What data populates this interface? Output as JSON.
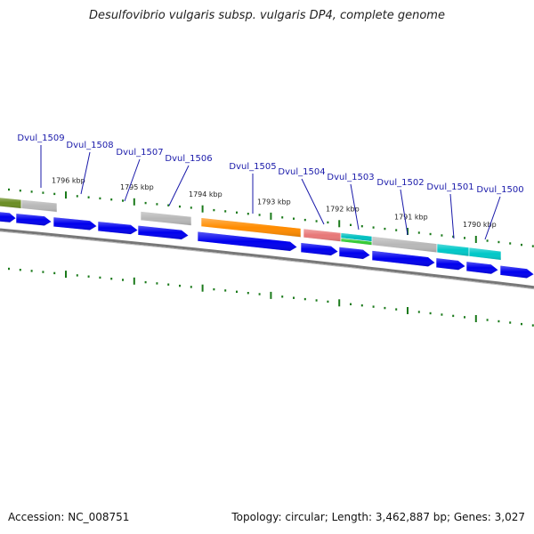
{
  "title": "Desulfovibrio vulgaris subsp. vulgaris DP4, complete genome",
  "footer": {
    "accession": "Accession: NC_008751",
    "summary": "Topology: circular; Length: 3,462,887 bp; Genes: 3,027"
  },
  "colors": {
    "forward_gene": "#0000ee",
    "gene_label": "#1a1aaa",
    "tick": "#1a7a1a",
    "backbone": "#777777"
  },
  "kbp_ticks": [
    "1796 kbp",
    "1795 kbp",
    "1794 kbp",
    "1793 kbp",
    "1792 kbp",
    "1791 kbp",
    "1790 kbp"
  ],
  "gene_labels": [
    "Dvul_1509",
    "Dvul_1508",
    "Dvul_1507",
    "Dvul_1506",
    "Dvul_1505",
    "Dvul_1504",
    "Dvul_1503",
    "Dvul_1502",
    "Dvul_1501",
    "Dvul_1500"
  ],
  "reverse_track_genes": [
    {
      "color": "#6b8e23"
    },
    {
      "color": "#b8b8b8"
    },
    {
      "color": "#b8b8b8"
    },
    {
      "color": "#ff8c00"
    },
    {
      "color": "#e87878"
    },
    {
      "color": "#00c0c0"
    },
    {
      "color": "#33cc33"
    },
    {
      "color": "#b8b8b8"
    },
    {
      "color": "#00c8c8"
    },
    {
      "color": "#00c8c8"
    }
  ]
}
